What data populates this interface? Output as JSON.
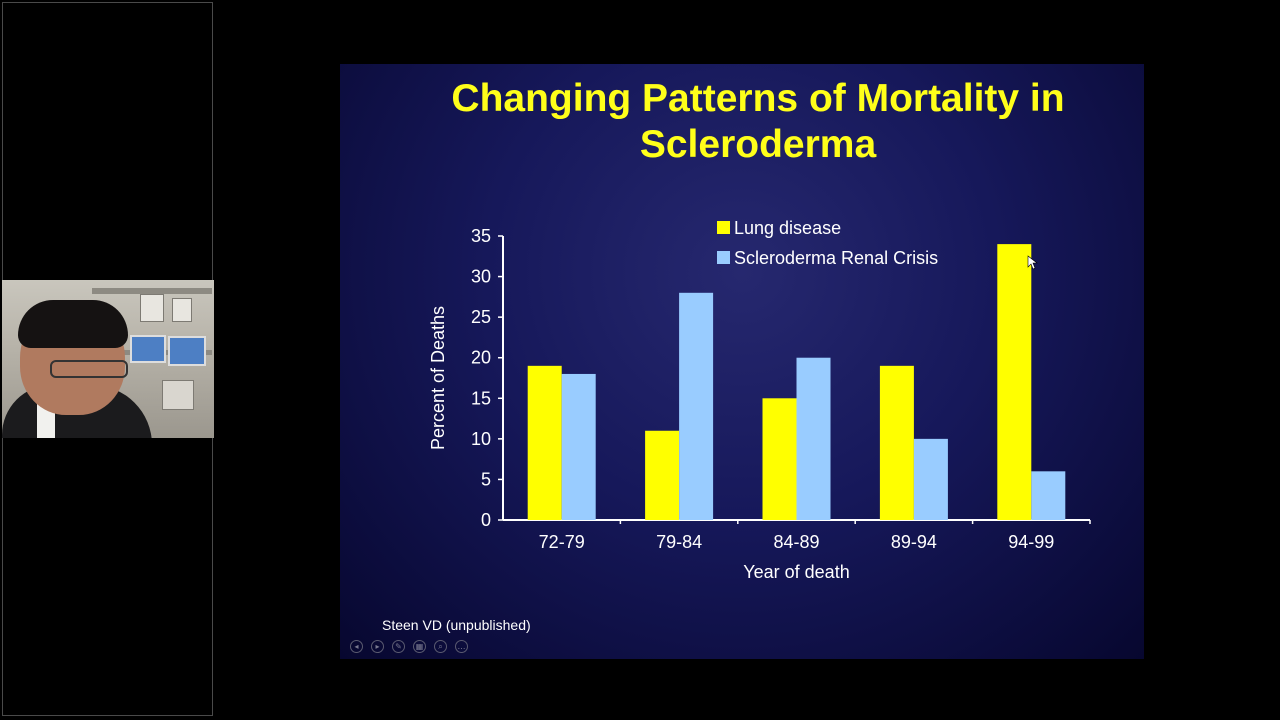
{
  "slide": {
    "title_line1": "Changing Patterns of Mortality in",
    "title_line2": "Scleroderma",
    "footnote": "Steen VD (unpublished)",
    "controls": [
      {
        "icon": "previous-slide-icon",
        "glyph": "◂"
      },
      {
        "icon": "next-slide-icon",
        "glyph": "▸"
      },
      {
        "icon": "pen-icon",
        "glyph": "✎"
      },
      {
        "icon": "grid-view-icon",
        "glyph": "▦"
      },
      {
        "icon": "zoom-icon",
        "glyph": "⌕"
      },
      {
        "icon": "more-options-icon",
        "glyph": "…"
      }
    ]
  },
  "colors": {
    "title": "#ffff1a",
    "lung": "#ffff00",
    "renal": "#99ccff",
    "axis_text": "#ffffff"
  },
  "chart_data": {
    "type": "bar",
    "xlabel": "Year of death",
    "ylabel": "Percent of Deaths",
    "categories": [
      "72-79",
      "79-84",
      "84-89",
      "89-94",
      "94-99"
    ],
    "ylim": [
      0,
      35
    ],
    "yticks": [
      0,
      5,
      10,
      15,
      20,
      25,
      30,
      35
    ],
    "series": [
      {
        "name": "Lung disease",
        "values": [
          19,
          11,
          15,
          19,
          34
        ],
        "color": "#ffff00"
      },
      {
        "name": "Scleroderma Renal Crisis",
        "values": [
          18,
          28,
          20,
          10,
          6
        ],
        "color": "#99ccff"
      }
    ],
    "legend_position": "top-right",
    "grid": false
  }
}
